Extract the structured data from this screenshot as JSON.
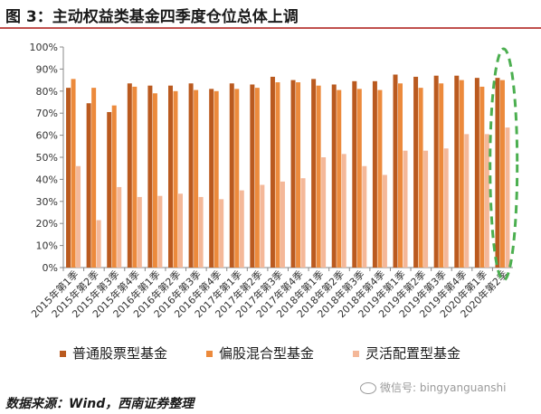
{
  "header": {
    "title": "图 3：主动权益类基金四季度仓位总体上调"
  },
  "footer": {
    "source": "数据来源：Wind，西南证券整理"
  },
  "watermark": {
    "text": "微信号: bingyanguanshi",
    "icon": "wechat-icon"
  },
  "colors": {
    "series1": "#ba5a1f",
    "series2": "#ec8a3c",
    "series3": "#f4b899",
    "highlight": "#4caf50",
    "grid": "#d8d8d8",
    "axis": "#888888"
  },
  "chart_data": {
    "type": "bar",
    "categories": [
      "2015年第1季",
      "2015年第2季",
      "2015年第3季",
      "2015年第4季",
      "2016年第1季",
      "2016年第2季",
      "2016年第3季",
      "2016年第4季",
      "2017年第1季",
      "2017年第2季",
      "2017年第3季",
      "2017年第4季",
      "2018年第1季",
      "2018年第2季",
      "2018年第3季",
      "2018年第4季",
      "2019年第1季",
      "2019年第2季",
      "2019年第3季",
      "2019年第4季",
      "2020年第1季",
      "2020年第2季"
    ],
    "series": [
      {
        "name": "普通股票型基金",
        "values": [
          81.5,
          74.5,
          70.5,
          83.5,
          82.5,
          82.5,
          83.5,
          81,
          83.5,
          83,
          86.5,
          85,
          85.5,
          83,
          84.5,
          84.5,
          87.5,
          86.5,
          87,
          87,
          86,
          86
        ]
      },
      {
        "name": "偏股混合型基金",
        "values": [
          85.5,
          81.5,
          73.5,
          82,
          79,
          80,
          80.5,
          80,
          81,
          81.5,
          84,
          84,
          82.5,
          80.5,
          81,
          80.5,
          83.5,
          81.5,
          83.5,
          85,
          82,
          85
        ]
      },
      {
        "name": "灵活配置型基金",
        "values": [
          46,
          21.5,
          36.5,
          32,
          32.5,
          33.5,
          32,
          31,
          35,
          37.5,
          39,
          40.5,
          50,
          51.5,
          46,
          42,
          53,
          53,
          54,
          60.5,
          60.5,
          63.5
        ]
      }
    ],
    "yticks": [
      "0%",
      "10%",
      "20%",
      "30%",
      "40%",
      "50%",
      "60%",
      "70%",
      "80%",
      "90%",
      "100%"
    ],
    "ylim": [
      0,
      100
    ],
    "grid": false,
    "legend_position": "bottom",
    "annotation": "dashed green ellipse around 2020年第2季"
  }
}
